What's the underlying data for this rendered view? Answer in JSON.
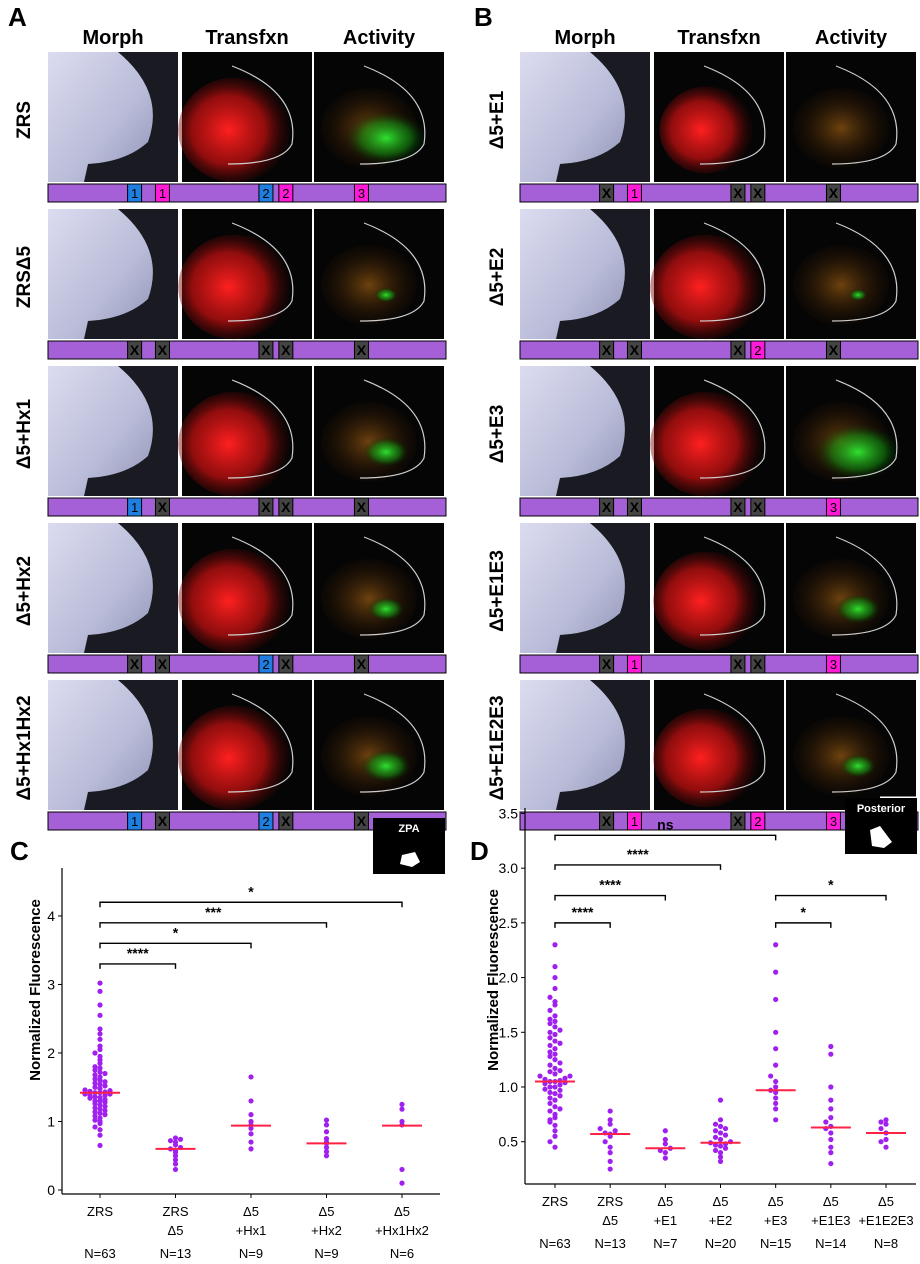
{
  "panels": {
    "A": {
      "letter": "A",
      "headers": [
        "Morph",
        "Transfxn",
        "Activity"
      ],
      "rows": [
        {
          "label": "ZRS",
          "bar": [
            "1",
            "1",
            "2",
            "2",
            "3"
          ],
          "transfxn": 0.9,
          "activity": 0.9
        },
        {
          "label": "ZRSΔ5",
          "bar": [
            "X",
            "X",
            "X",
            "X",
            "X"
          ],
          "transfxn": 0.9,
          "activity": 0.25
        },
        {
          "label": "Δ5+Hx1",
          "bar": [
            "1",
            "X",
            "X",
            "X",
            "X"
          ],
          "transfxn": 0.9,
          "activity": 0.5
        },
        {
          "label": "Δ5+Hx2",
          "bar": [
            "X",
            "X",
            "2",
            "X",
            "X"
          ],
          "transfxn": 0.9,
          "activity": 0.4
        },
        {
          "label": "Δ5+Hx1Hx2",
          "bar": [
            "1",
            "X",
            "2",
            "X",
            "X"
          ],
          "transfxn": 0.9,
          "activity": 0.55
        }
      ]
    },
    "B": {
      "letter": "B",
      "headers": [
        "Morph",
        "Transfxn",
        "Activity"
      ],
      "rows": [
        {
          "label": "Δ5+E1",
          "bar": [
            "X",
            "1",
            "X",
            "X",
            "X"
          ],
          "transfxn": 0.75,
          "activity": 0.05
        },
        {
          "label": "Δ5+E2",
          "bar": [
            "X",
            "X",
            "X",
            "2",
            "X"
          ],
          "transfxn": 0.9,
          "activity": 0.2
        },
        {
          "label": "Δ5+E3",
          "bar": [
            "X",
            "X",
            "X",
            "X",
            "3"
          ],
          "transfxn": 0.9,
          "activity": 0.95
        },
        {
          "label": "Δ5+E1E3",
          "bar": [
            "X",
            "1",
            "X",
            "X",
            "3"
          ],
          "transfxn": 0.85,
          "activity": 0.5
        },
        {
          "label": "Δ5+E1E2E3",
          "bar": [
            "X",
            "1",
            "X",
            "2",
            "3"
          ],
          "transfxn": 0.85,
          "activity": 0.4
        }
      ]
    }
  },
  "colors": {
    "bar_purple": "#a560d8",
    "hx_blue": "#1e7fe0",
    "enh_magenta": "#ff1ad8",
    "x_gray": "#444444",
    "point_purple": "#a020f0",
    "median_red": "#ff2244"
  },
  "chart_data": [
    {
      "type": "scatter",
      "panel": "C",
      "inset_label": "ZPA",
      "xlabel": "",
      "ylabel": "Normalized Fluorescence",
      "ylim": [
        0,
        4.7
      ],
      "yticks": [
        "0",
        "1",
        "2",
        "3",
        "4"
      ],
      "ytick_values": [
        0,
        1,
        2,
        3,
        4
      ],
      "categories": [
        {
          "l1": "ZRS",
          "l2": "",
          "n": "N=63"
        },
        {
          "l1": "ZRS",
          "l2": "Δ5",
          "n": "N=13"
        },
        {
          "l1": "Δ5",
          "l2": "+Hx1",
          "n": "N=9"
        },
        {
          "l1": "Δ5",
          "l2": "+Hx2",
          "n": "N=9"
        },
        {
          "l1": "Δ5",
          "l2": "+Hx1Hx2",
          "n": "N=6"
        }
      ],
      "medians": [
        1.42,
        0.6,
        0.94,
        0.68,
        0.94
      ],
      "points": [
        [
          0.65,
          0.8,
          0.88,
          0.92,
          0.97,
          1.0,
          1.02,
          1.05,
          1.08,
          1.1,
          1.12,
          1.14,
          1.16,
          1.18,
          1.2,
          1.22,
          1.24,
          1.26,
          1.28,
          1.3,
          1.3,
          1.32,
          1.34,
          1.35,
          1.36,
          1.38,
          1.38,
          1.4,
          1.4,
          1.42,
          1.42,
          1.43,
          1.44,
          1.45,
          1.46,
          1.48,
          1.5,
          1.52,
          1.54,
          1.56,
          1.58,
          1.6,
          1.62,
          1.65,
          1.68,
          1.7,
          1.72,
          1.75,
          1.78,
          1.8,
          1.85,
          1.9,
          1.95,
          2.0,
          2.05,
          2.1,
          2.2,
          2.28,
          2.35,
          2.55,
          2.7,
          2.9,
          3.02
        ],
        [
          0.3,
          0.38,
          0.44,
          0.5,
          0.55,
          0.58,
          0.6,
          0.62,
          0.66,
          0.7,
          0.72,
          0.74,
          0.76
        ],
        [
          0.6,
          0.7,
          0.82,
          0.9,
          0.95,
          1.0,
          1.1,
          1.3,
          1.65
        ],
        [
          0.5,
          0.56,
          0.62,
          0.68,
          0.7,
          0.75,
          0.85,
          0.95,
          1.02
        ],
        [
          0.1,
          0.3,
          0.95,
          1.0,
          1.18,
          1.25
        ]
      ],
      "comparisons": [
        {
          "from": 0,
          "to": 1,
          "label": "****",
          "y": 3.3
        },
        {
          "from": 0,
          "to": 2,
          "label": "*",
          "y": 3.6
        },
        {
          "from": 0,
          "to": 3,
          "label": "***",
          "y": 3.9
        },
        {
          "from": 0,
          "to": 4,
          "label": "*",
          "y": 4.2
        }
      ]
    },
    {
      "type": "scatter",
      "panel": "D",
      "inset_label": "Posterior",
      "xlabel": "",
      "ylabel": "Normalized Fluorescence",
      "ylim": [
        0.15,
        3.55
      ],
      "yticks": [
        "0.5",
        "1.0",
        "1.5",
        "2.0",
        "2.5",
        "3.0",
        "3.5"
      ],
      "ytick_values": [
        0.5,
        1.0,
        1.5,
        2.0,
        2.5,
        3.0,
        3.5
      ],
      "categories": [
        {
          "l1": "ZRS",
          "l2": "",
          "n": "N=63"
        },
        {
          "l1": "ZRS",
          "l2": "Δ5",
          "n": "N=13"
        },
        {
          "l1": "Δ5",
          "l2": "+E1",
          "n": "N=7"
        },
        {
          "l1": "Δ5",
          "l2": "+E2",
          "n": "N=20"
        },
        {
          "l1": "Δ5",
          "l2": "+E3",
          "n": "N=15"
        },
        {
          "l1": "Δ5",
          "l2": "+E1E3",
          "n": "N=14"
        },
        {
          "l1": "Δ5",
          "l2": "+E1E2E3",
          "n": "N=8"
        }
      ],
      "medians": [
        1.05,
        0.57,
        0.44,
        0.49,
        0.97,
        0.63,
        0.58
      ],
      "points": [
        [
          0.45,
          0.5,
          0.55,
          0.6,
          0.65,
          0.68,
          0.72,
          0.75,
          0.78,
          0.8,
          0.82,
          0.85,
          0.88,
          0.9,
          0.92,
          0.94,
          0.95,
          0.97,
          0.98,
          1.0,
          1.0,
          1.02,
          1.03,
          1.04,
          1.05,
          1.05,
          1.06,
          1.07,
          1.08,
          1.1,
          1.1,
          1.12,
          1.14,
          1.15,
          1.17,
          1.2,
          1.22,
          1.25,
          1.28,
          1.3,
          1.32,
          1.35,
          1.38,
          1.4,
          1.42,
          1.45,
          1.48,
          1.5,
          1.52,
          1.55,
          1.58,
          1.6,
          1.62,
          1.65,
          1.7,
          1.75,
          1.78,
          1.82,
          1.9,
          2.0,
          2.1,
          2.3,
          0.7
        ],
        [
          0.25,
          0.32,
          0.4,
          0.45,
          0.5,
          0.55,
          0.57,
          0.58,
          0.6,
          0.62,
          0.66,
          0.7,
          0.78
        ],
        [
          0.35,
          0.4,
          0.42,
          0.44,
          0.48,
          0.52,
          0.6
        ],
        [
          0.32,
          0.36,
          0.4,
          0.42,
          0.44,
          0.46,
          0.47,
          0.48,
          0.49,
          0.5,
          0.52,
          0.54,
          0.56,
          0.58,
          0.6,
          0.62,
          0.64,
          0.66,
          0.7,
          0.88
        ],
        [
          0.7,
          0.8,
          0.85,
          0.9,
          0.95,
          0.97,
          1.0,
          1.05,
          1.1,
          1.2,
          1.35,
          1.5,
          1.8,
          2.05,
          2.3
        ],
        [
          0.3,
          0.4,
          0.45,
          0.52,
          0.58,
          0.62,
          0.64,
          0.68,
          0.72,
          0.8,
          0.88,
          1.0,
          1.3,
          1.37
        ],
        [
          0.45,
          0.5,
          0.52,
          0.58,
          0.62,
          0.66,
          0.68,
          0.7
        ]
      ],
      "comparisons": [
        {
          "from": 0,
          "to": 1,
          "label": "****",
          "y": 2.5
        },
        {
          "from": 0,
          "to": 2,
          "label": "****",
          "y": 2.75
        },
        {
          "from": 0,
          "to": 3,
          "label": "****",
          "y": 3.03
        },
        {
          "from": 0,
          "to": 4,
          "label": "ns",
          "y": 3.3
        },
        {
          "from": 4,
          "to": 5,
          "label": "*",
          "y": 2.5
        },
        {
          "from": 4,
          "to": 6,
          "label": "*",
          "y": 2.75
        }
      ]
    }
  ]
}
